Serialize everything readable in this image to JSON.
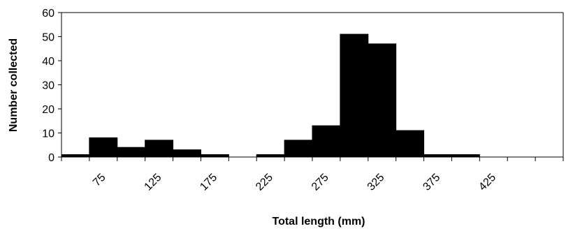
{
  "chart_data": {
    "type": "bar",
    "xlabel": "Total length (mm)",
    "ylabel": "Number collected",
    "ylim": [
      0,
      60
    ],
    "yticks": [
      0,
      10,
      20,
      30,
      40,
      50,
      60
    ],
    "bin_width": 25,
    "x_range": [
      37.5,
      487.5
    ],
    "xtick_labels": [
      75,
      125,
      175,
      225,
      275,
      325,
      375,
      425
    ],
    "bins": [
      {
        "x": 50,
        "value": 1
      },
      {
        "x": 75,
        "value": 8
      },
      {
        "x": 100,
        "value": 4
      },
      {
        "x": 125,
        "value": 7
      },
      {
        "x": 150,
        "value": 3
      },
      {
        "x": 175,
        "value": 1
      },
      {
        "x": 200,
        "value": 0
      },
      {
        "x": 225,
        "value": 1
      },
      {
        "x": 250,
        "value": 7
      },
      {
        "x": 275,
        "value": 13
      },
      {
        "x": 300,
        "value": 51
      },
      {
        "x": 325,
        "value": 47
      },
      {
        "x": 350,
        "value": 11
      },
      {
        "x": 375,
        "value": 1
      },
      {
        "x": 400,
        "value": 1
      },
      {
        "x": 425,
        "value": 0
      },
      {
        "x": 450,
        "value": 0
      }
    ],
    "bar_color": "#000000",
    "grid": false
  }
}
